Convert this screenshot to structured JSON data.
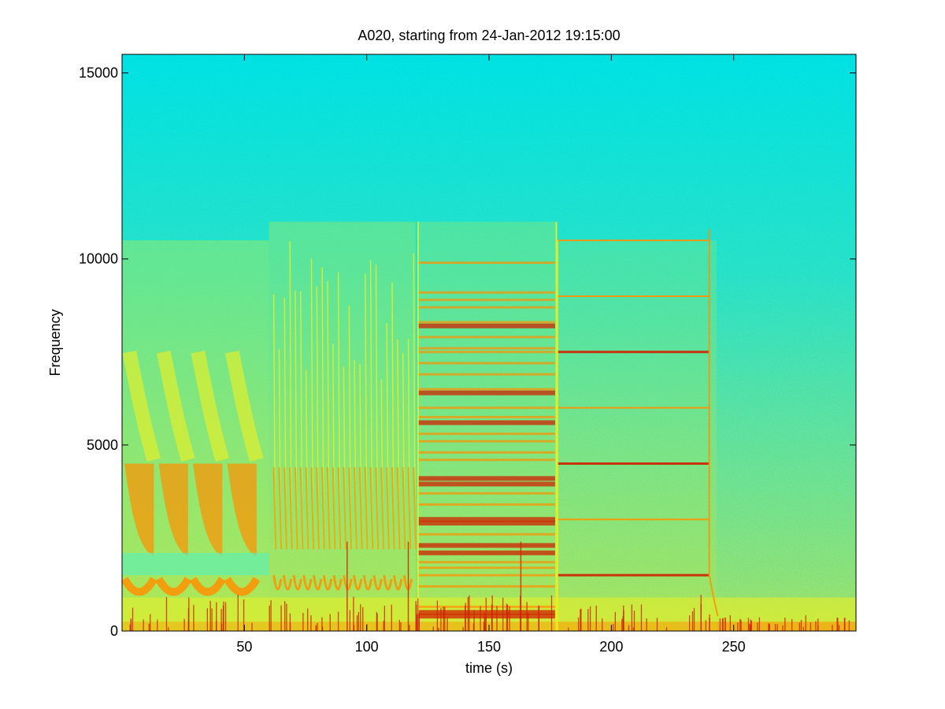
{
  "chart_data": {
    "type": "heatmap",
    "title": "A020, starting from 24-Jan-2012 19:15:00",
    "xlabel": "time (s)",
    "ylabel": "Frequency",
    "xlim": [
      0,
      300
    ],
    "ylim": [
      0,
      15500
    ],
    "xticks": [
      50,
      100,
      150,
      200,
      250
    ],
    "yticks": [
      0,
      5000,
      10000,
      15000
    ],
    "grid": false,
    "legend": "none",
    "colormap": {
      "background_high": "#00f0e0",
      "background_mid": "#40f0a0",
      "background_low": "#a0f060",
      "active": "#f0f020",
      "strong": "#ff9000",
      "peak": "#d02000"
    },
    "segments": [
      {
        "name": "sweep-pattern",
        "t_start": 0,
        "t_end": 60,
        "f_low": 0,
        "f_high": 10500
      },
      {
        "name": "dense-pulses",
        "t_start": 60,
        "t_end": 120,
        "f_low": 0,
        "f_high": 11000
      },
      {
        "name": "multi-tone-band",
        "t_start": 121,
        "t_end": 178,
        "f_low": 0,
        "f_high": 11000
      },
      {
        "name": "harmonic-tones",
        "t_start": 178,
        "t_end": 243,
        "f_low": 0,
        "f_high": 10500
      }
    ],
    "tone_lines": [
      {
        "t_start": 178,
        "t_end": 240,
        "freq": 1500,
        "strength": "peak"
      },
      {
        "t_start": 178,
        "t_end": 240,
        "freq": 3000,
        "strength": "strong"
      },
      {
        "t_start": 178,
        "t_end": 240,
        "freq": 4500,
        "strength": "peak"
      },
      {
        "t_start": 178,
        "t_end": 240,
        "freq": 6000,
        "strength": "strong"
      },
      {
        "t_start": 178,
        "t_end": 240,
        "freq": 7500,
        "strength": "peak"
      },
      {
        "t_start": 178,
        "t_end": 240,
        "freq": 9000,
        "strength": "strong"
      },
      {
        "t_start": 178,
        "t_end": 240,
        "freq": 10500,
        "strength": "strong"
      }
    ]
  }
}
